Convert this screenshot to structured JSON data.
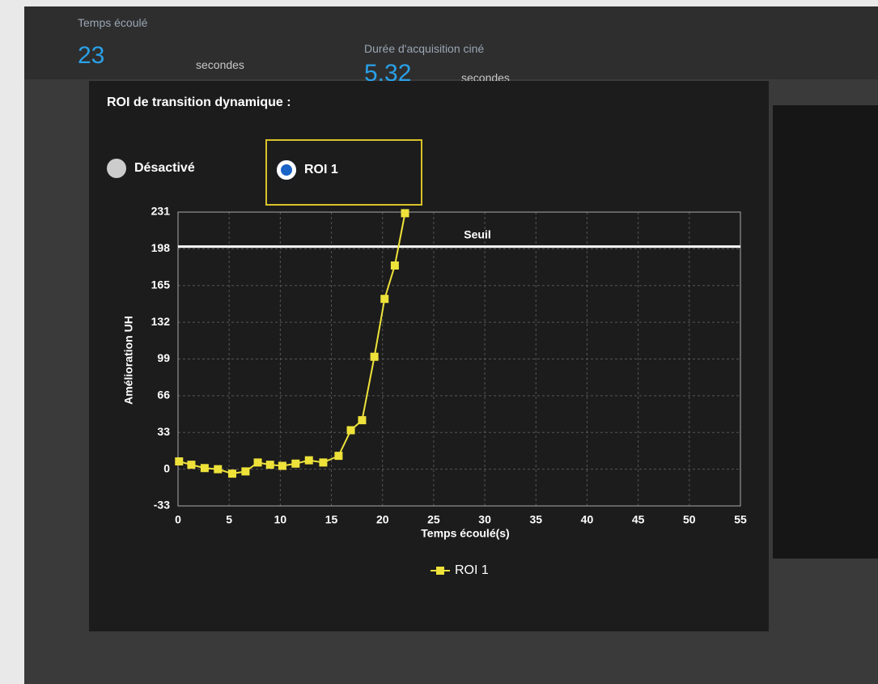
{
  "header": {
    "elapsed_label": "Temps écoulé",
    "elapsed_value": "23",
    "elapsed_unit": "secondes",
    "acq_label": "Durée d'acquisition ciné",
    "acq_value": "5,32",
    "acq_unit": "secondes"
  },
  "roi": {
    "title": "ROI de transition dynamique :",
    "options": [
      "Désactivé",
      "ROI 1"
    ]
  },
  "chart_data": {
    "type": "line",
    "xlabel": "Temps écoulé(s)",
    "ylabel": "Amélioration UH",
    "x": [
      0.1,
      1.3,
      2.6,
      3.9,
      5.3,
      6.6,
      7.8,
      9.0,
      10.2,
      11.5,
      12.8,
      14.2,
      15.7,
      16.9,
      18.0,
      19.2,
      20.2,
      21.2,
      22.2
    ],
    "series": [
      {
        "name": "ROI 1",
        "color": "#eee23a",
        "values": [
          7,
          4,
          1,
          0,
          -4,
          -2,
          6,
          4,
          3,
          5,
          8,
          6,
          12,
          35,
          44,
          101,
          153,
          183,
          230
        ]
      }
    ],
    "threshold": {
      "label": "Seuil",
      "value": 200,
      "color": "#ffffff"
    },
    "xlim": [
      0,
      55
    ],
    "xticks": [
      0,
      5,
      10,
      15,
      20,
      25,
      30,
      35,
      40,
      45,
      50,
      55
    ],
    "ylim": [
      -33,
      231
    ],
    "yticks": [
      -33,
      0,
      33,
      66,
      99,
      132,
      165,
      198,
      231
    ],
    "grid": true,
    "legend": "bottom"
  }
}
